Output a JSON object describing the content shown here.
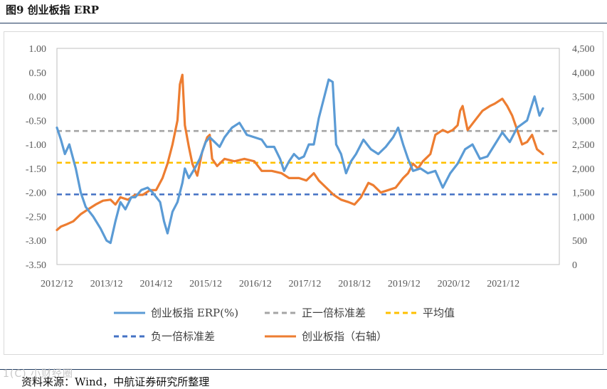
{
  "figure": {
    "title": "图9  创业板指 ERP",
    "source": "资料来源：Wind，中航证券研究所整理",
    "watermark": "1(C) 小财经圈"
  },
  "chart_data": {
    "type": "line",
    "title": "创业板指 ERP",
    "x_ticks": [
      "2012/12",
      "2013/12",
      "2014/12",
      "2015/12",
      "2016/12",
      "2017/12",
      "2018/12",
      "2019/12",
      "2020/12",
      "2021/12"
    ],
    "x_range": [
      2012.92,
      2023.05
    ],
    "y_left": {
      "ticks": [
        "1.00",
        "0.50",
        "0.00",
        "-0.50",
        "-1.00",
        "-1.50",
        "-2.00",
        "-2.50",
        "-3.00",
        "-3.50"
      ],
      "range": [
        -3.5,
        1.0
      ]
    },
    "y_right": {
      "ticks": [
        "4,500",
        "4,000",
        "3,500",
        "3,000",
        "2,500",
        "2,000",
        "1,500",
        "1,000",
        "500",
        "0"
      ],
      "range": [
        0,
        4500
      ]
    },
    "reference_lines": [
      {
        "name": "正一倍标准差",
        "value": -0.72,
        "color": "#a5a5a5"
      },
      {
        "name": "平均值",
        "value": -1.38,
        "color": "#ffc000"
      },
      {
        "name": "负一倍标准差",
        "value": -2.04,
        "color": "#4472c4"
      }
    ],
    "series": [
      {
        "name": "创业板指 ERP(%)",
        "axis": "left",
        "color": "#5b9bd5",
        "points": [
          [
            2012.92,
            -0.65
          ],
          [
            2013.0,
            -0.9
          ],
          [
            2013.08,
            -1.2
          ],
          [
            2013.17,
            -1.0
          ],
          [
            2013.3,
            -1.5
          ],
          [
            2013.4,
            -2.0
          ],
          [
            2013.5,
            -2.3
          ],
          [
            2013.65,
            -2.5
          ],
          [
            2013.8,
            -2.75
          ],
          [
            2013.92,
            -3.0
          ],
          [
            2014.0,
            -3.05
          ],
          [
            2014.1,
            -2.6
          ],
          [
            2014.2,
            -2.2
          ],
          [
            2014.3,
            -2.35
          ],
          [
            2014.42,
            -2.1
          ],
          [
            2014.5,
            -2.1
          ],
          [
            2014.62,
            -1.95
          ],
          [
            2014.75,
            -1.9
          ],
          [
            2014.85,
            -2.0
          ],
          [
            2015.0,
            -2.2
          ],
          [
            2015.08,
            -2.6
          ],
          [
            2015.15,
            -2.85
          ],
          [
            2015.25,
            -2.4
          ],
          [
            2015.35,
            -2.2
          ],
          [
            2015.45,
            -1.8
          ],
          [
            2015.5,
            -1.5
          ],
          [
            2015.58,
            -1.7
          ],
          [
            2015.7,
            -1.5
          ],
          [
            2015.8,
            -1.3
          ],
          [
            2015.92,
            -0.95
          ],
          [
            2016.0,
            -0.85
          ],
          [
            2016.1,
            -0.95
          ],
          [
            2016.2,
            -1.05
          ],
          [
            2016.3,
            -0.85
          ],
          [
            2016.45,
            -0.65
          ],
          [
            2016.6,
            -0.55
          ],
          [
            2016.75,
            -0.8
          ],
          [
            2016.9,
            -0.85
          ],
          [
            2017.05,
            -0.9
          ],
          [
            2017.15,
            -1.05
          ],
          [
            2017.3,
            -1.05
          ],
          [
            2017.42,
            -1.3
          ],
          [
            2017.5,
            -1.55
          ],
          [
            2017.6,
            -1.35
          ],
          [
            2017.7,
            -1.2
          ],
          [
            2017.8,
            -1.3
          ],
          [
            2017.9,
            -1.25
          ],
          [
            2018.0,
            -1.0
          ],
          [
            2018.1,
            -1.0
          ],
          [
            2018.2,
            -0.45
          ],
          [
            2018.3,
            -0.05
          ],
          [
            2018.4,
            0.35
          ],
          [
            2018.48,
            0.3
          ],
          [
            2018.55,
            -1.0
          ],
          [
            2018.65,
            -1.2
          ],
          [
            2018.75,
            -1.6
          ],
          [
            2018.85,
            -1.35
          ],
          [
            2018.95,
            -1.2
          ],
          [
            2019.1,
            -0.9
          ],
          [
            2019.25,
            -1.1
          ],
          [
            2019.4,
            -1.2
          ],
          [
            2019.55,
            -1.05
          ],
          [
            2019.7,
            -0.85
          ],
          [
            2019.8,
            -0.65
          ],
          [
            2019.9,
            -1.0
          ],
          [
            2020.0,
            -1.3
          ],
          [
            2020.1,
            -1.55
          ],
          [
            2020.25,
            -1.5
          ],
          [
            2020.4,
            -1.6
          ],
          [
            2020.55,
            -1.55
          ],
          [
            2020.7,
            -1.9
          ],
          [
            2020.85,
            -1.6
          ],
          [
            2021.0,
            -1.4
          ],
          [
            2021.15,
            -1.1
          ],
          [
            2021.3,
            -1.0
          ],
          [
            2021.45,
            -1.3
          ],
          [
            2021.6,
            -1.25
          ],
          [
            2021.75,
            -1.0
          ],
          [
            2021.9,
            -0.75
          ],
          [
            2022.05,
            -0.95
          ],
          [
            2022.2,
            -0.65
          ],
          [
            2022.4,
            -0.5
          ],
          [
            2022.55,
            0.0
          ],
          [
            2022.65,
            -0.4
          ],
          [
            2022.72,
            -0.25
          ]
        ]
      },
      {
        "name": "创业板指（右轴）",
        "axis": "right",
        "color": "#ed7d31",
        "points": [
          [
            2012.92,
            720
          ],
          [
            2013.0,
            790
          ],
          [
            2013.1,
            830
          ],
          [
            2013.25,
            900
          ],
          [
            2013.4,
            1050
          ],
          [
            2013.55,
            1150
          ],
          [
            2013.7,
            1250
          ],
          [
            2013.85,
            1330
          ],
          [
            2014.0,
            1350
          ],
          [
            2014.1,
            1250
          ],
          [
            2014.2,
            1400
          ],
          [
            2014.35,
            1350
          ],
          [
            2014.5,
            1450
          ],
          [
            2014.65,
            1450
          ],
          [
            2014.8,
            1550
          ],
          [
            2014.92,
            1550
          ],
          [
            2015.05,
            1800
          ],
          [
            2015.15,
            2100
          ],
          [
            2015.25,
            2500
          ],
          [
            2015.35,
            3000
          ],
          [
            2015.4,
            3750
          ],
          [
            2015.45,
            3950
          ],
          [
            2015.5,
            2900
          ],
          [
            2015.58,
            2450
          ],
          [
            2015.65,
            2100
          ],
          [
            2015.75,
            1850
          ],
          [
            2015.85,
            2350
          ],
          [
            2015.95,
            2650
          ],
          [
            2016.0,
            2700
          ],
          [
            2016.05,
            2200
          ],
          [
            2016.15,
            2050
          ],
          [
            2016.3,
            2200
          ],
          [
            2016.5,
            2150
          ],
          [
            2016.7,
            2200
          ],
          [
            2016.9,
            2150
          ],
          [
            2017.05,
            1950
          ],
          [
            2017.25,
            1950
          ],
          [
            2017.45,
            1900
          ],
          [
            2017.6,
            1800
          ],
          [
            2017.8,
            1800
          ],
          [
            2017.95,
            1750
          ],
          [
            2018.0,
            1800
          ],
          [
            2018.1,
            1900
          ],
          [
            2018.2,
            1750
          ],
          [
            2018.35,
            1600
          ],
          [
            2018.5,
            1450
          ],
          [
            2018.65,
            1350
          ],
          [
            2018.8,
            1300
          ],
          [
            2018.92,
            1250
          ],
          [
            2019.05,
            1400
          ],
          [
            2019.2,
            1700
          ],
          [
            2019.3,
            1650
          ],
          [
            2019.45,
            1500
          ],
          [
            2019.6,
            1550
          ],
          [
            2019.75,
            1600
          ],
          [
            2019.9,
            1800
          ],
          [
            2020.0,
            1900
          ],
          [
            2020.1,
            2100
          ],
          [
            2020.2,
            2000
          ],
          [
            2020.3,
            2150
          ],
          [
            2020.45,
            2300
          ],
          [
            2020.55,
            2700
          ],
          [
            2020.7,
            2800
          ],
          [
            2020.8,
            2750
          ],
          [
            2020.9,
            2800
          ],
          [
            2021.0,
            2900
          ],
          [
            2021.05,
            3200
          ],
          [
            2021.1,
            3300
          ],
          [
            2021.2,
            2800
          ],
          [
            2021.35,
            3000
          ],
          [
            2021.5,
            3200
          ],
          [
            2021.65,
            3300
          ],
          [
            2021.75,
            3350
          ],
          [
            2021.9,
            3450
          ],
          [
            2022.0,
            3300
          ],
          [
            2022.1,
            3100
          ],
          [
            2022.2,
            2800
          ],
          [
            2022.3,
            2500
          ],
          [
            2022.4,
            2550
          ],
          [
            2022.5,
            2700
          ],
          [
            2022.6,
            2400
          ],
          [
            2022.72,
            2300
          ]
        ]
      }
    ],
    "legend": [
      {
        "label": "创业板指 ERP(%)",
        "style": "solid",
        "color": "#5b9bd5"
      },
      {
        "label": "正一倍标准差",
        "style": "dashed",
        "color": "#a5a5a5"
      },
      {
        "label": "平均值",
        "style": "dashed",
        "color": "#ffc000"
      },
      {
        "label": "负一倍标准差",
        "style": "dashed",
        "color": "#4472c4"
      },
      {
        "label": "创业板指（右轴）",
        "style": "solid",
        "color": "#ed7d31"
      }
    ]
  }
}
